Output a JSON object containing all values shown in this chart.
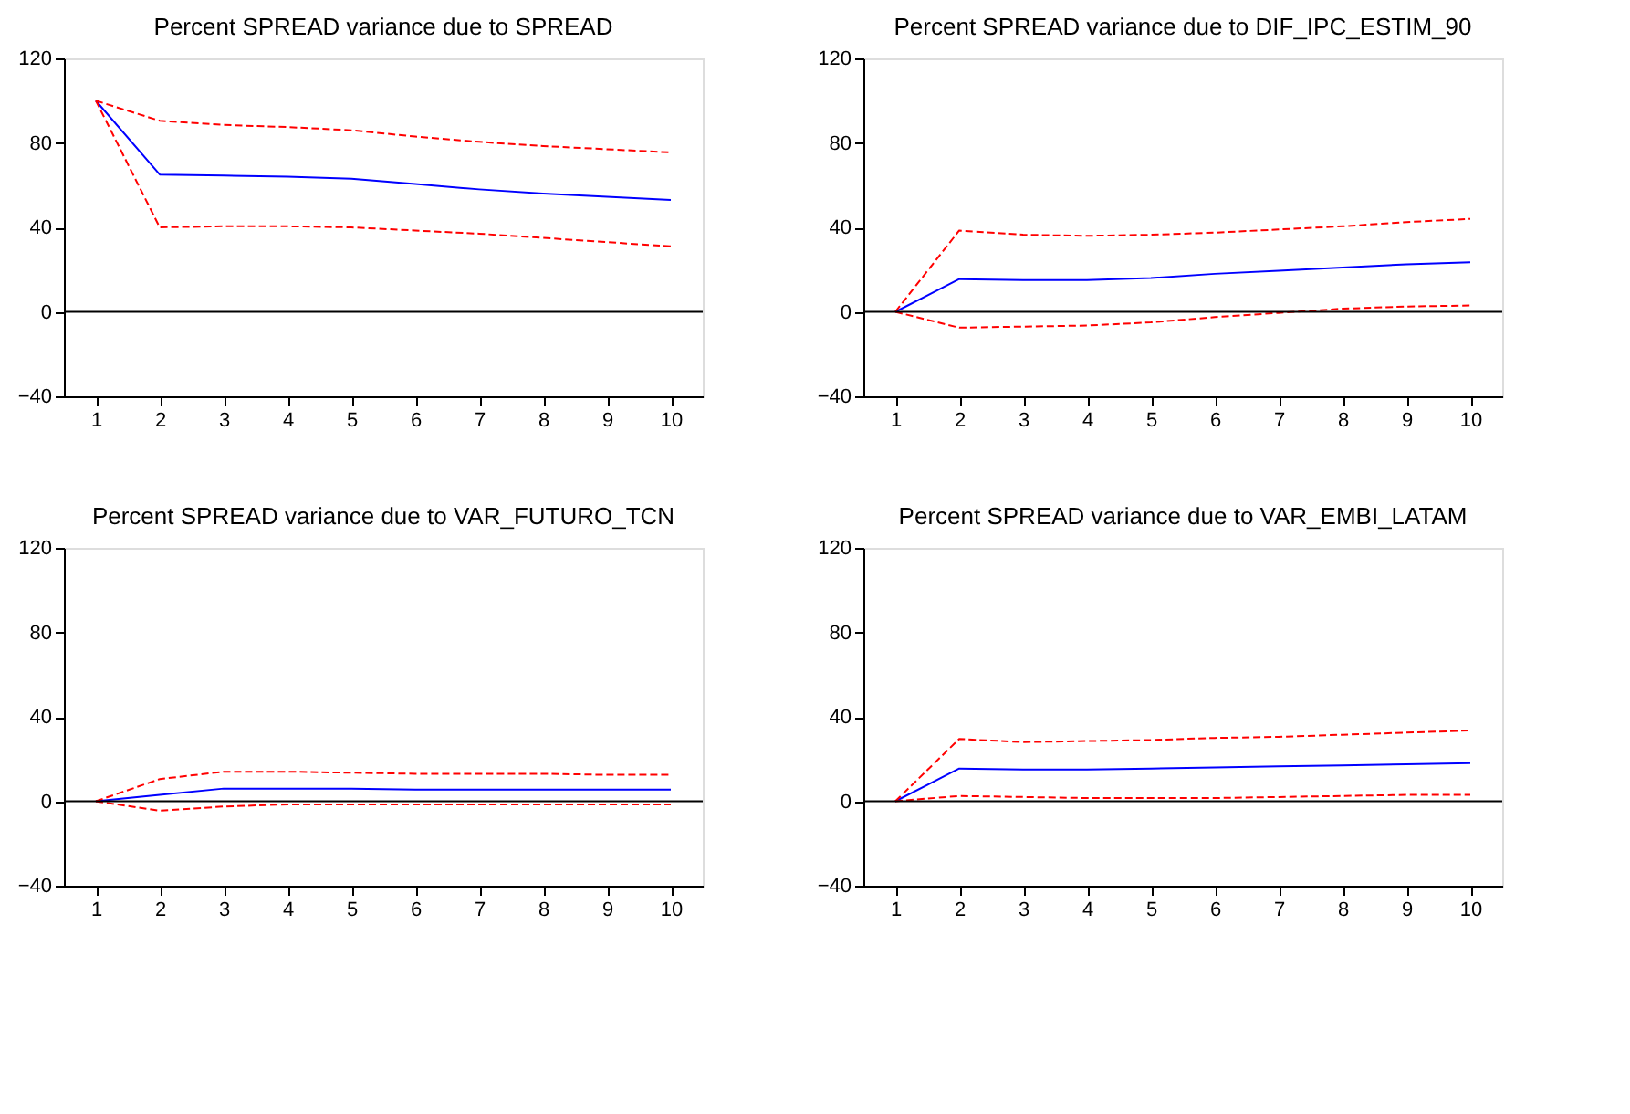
{
  "chart_data": [
    {
      "type": "line",
      "title": "Percent SPREAD variance due to SPREAD",
      "categories": [
        "1",
        "2",
        "3",
        "4",
        "5",
        "6",
        "7",
        "8",
        "9",
        "10"
      ],
      "ylim": [
        -40,
        120
      ],
      "yticks": [
        -40,
        0,
        40,
        80,
        120
      ],
      "grid": false,
      "ref_lines": [
        {
          "axis": "y",
          "value": 0,
          "color": "#000000"
        }
      ],
      "series": [
        {
          "color": "#0000ff",
          "line_style": "solid",
          "values": [
            100,
            65,
            64.5,
            64,
            63,
            60.5,
            58,
            56,
            54.5,
            53
          ]
        },
        {
          "color": "#ff0000",
          "line_style": "dashed",
          "values": [
            100,
            90.5,
            88.5,
            87.5,
            86,
            83,
            80.5,
            78.5,
            77,
            75.5
          ]
        },
        {
          "color": "#ff0000",
          "line_style": "dashed",
          "values": [
            100,
            40,
            40.5,
            40.5,
            40,
            38.5,
            37,
            35,
            33,
            31
          ]
        }
      ]
    },
    {
      "type": "line",
      "title": "Percent SPREAD variance due to DIF_IPC_ESTIM_90",
      "categories": [
        "1",
        "2",
        "3",
        "4",
        "5",
        "6",
        "7",
        "8",
        "9",
        "10"
      ],
      "ylim": [
        -40,
        120
      ],
      "yticks": [
        -40,
        0,
        40,
        80,
        120
      ],
      "grid": false,
      "ref_lines": [
        {
          "axis": "y",
          "value": 0,
          "color": "#000000"
        }
      ],
      "series": [
        {
          "color": "#0000ff",
          "line_style": "solid",
          "values": [
            0,
            15.5,
            15,
            15,
            16,
            18,
            19.5,
            21,
            22.5,
            23.5
          ]
        },
        {
          "color": "#ff0000",
          "line_style": "dashed",
          "values": [
            0,
            38.5,
            36.5,
            36,
            36.5,
            37.5,
            39,
            40.5,
            42.5,
            44
          ]
        },
        {
          "color": "#ff0000",
          "line_style": "dashed",
          "values": [
            0,
            -7.5,
            -7,
            -6.5,
            -5,
            -2.5,
            -0.5,
            1.5,
            2.5,
            3
          ]
        }
      ]
    },
    {
      "type": "line",
      "title": "Percent SPREAD variance due to VAR_FUTURO_TCN",
      "categories": [
        "1",
        "2",
        "3",
        "4",
        "5",
        "6",
        "7",
        "8",
        "9",
        "10"
      ],
      "ylim": [
        -40,
        120
      ],
      "yticks": [
        -40,
        0,
        40,
        80,
        120
      ],
      "grid": false,
      "ref_lines": [
        {
          "axis": "y",
          "value": 0,
          "color": "#000000"
        }
      ],
      "series": [
        {
          "color": "#0000ff",
          "line_style": "solid",
          "values": [
            0,
            3,
            6,
            6,
            6,
            5.5,
            5.5,
            5.5,
            5.5,
            5.5
          ]
        },
        {
          "color": "#ff0000",
          "line_style": "dashed",
          "values": [
            0,
            10.5,
            14,
            14,
            13.5,
            13,
            13,
            13,
            12.5,
            12.5
          ]
        },
        {
          "color": "#ff0000",
          "line_style": "dashed",
          "values": [
            0,
            -4.5,
            -2.5,
            -1.5,
            -1.5,
            -1.5,
            -1.5,
            -1.5,
            -1.5,
            -1.5
          ]
        }
      ]
    },
    {
      "type": "line",
      "title": "Percent SPREAD variance due to VAR_EMBI_LATAM",
      "categories": [
        "1",
        "2",
        "3",
        "4",
        "5",
        "6",
        "7",
        "8",
        "9",
        "10"
      ],
      "ylim": [
        -40,
        120
      ],
      "yticks": [
        -40,
        0,
        40,
        80,
        120
      ],
      "grid": false,
      "ref_lines": [
        {
          "axis": "y",
          "value": 0,
          "color": "#000000"
        }
      ],
      "series": [
        {
          "color": "#0000ff",
          "line_style": "solid",
          "values": [
            0,
            15.5,
            15,
            15,
            15.5,
            16,
            16.5,
            17,
            17.5,
            18
          ]
        },
        {
          "color": "#ff0000",
          "line_style": "dashed",
          "values": [
            0,
            29.5,
            28,
            28.5,
            29,
            30,
            30.5,
            31.5,
            32.5,
            33.5
          ]
        },
        {
          "color": "#ff0000",
          "line_style": "dashed",
          "values": [
            0,
            2.5,
            2,
            1.5,
            1.5,
            1.5,
            2,
            2.5,
            3,
            3
          ]
        }
      ]
    }
  ]
}
